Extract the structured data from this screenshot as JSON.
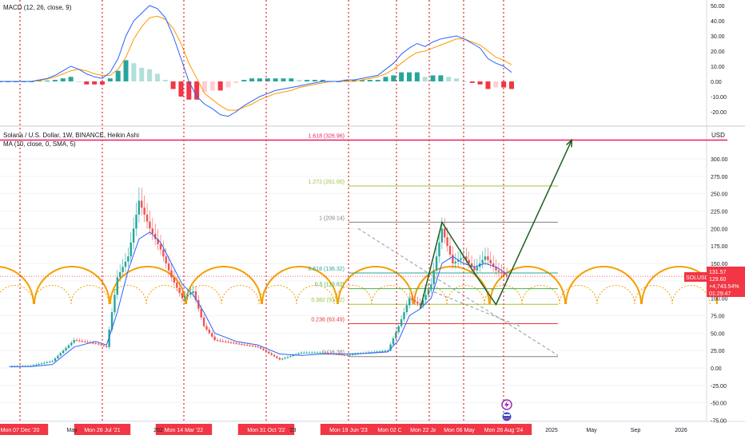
{
  "macd_panel": {
    "title": "MACD (12, 26, close, 9)",
    "y_ticks": [
      "50.00",
      "40.00",
      "30.00",
      "20.00",
      "10.00",
      "0.00",
      "-10.00",
      "-20.00"
    ]
  },
  "main_panel": {
    "title": "Solana / U.S. Dollar, 1W, BINANCE, Heikin Ashi",
    "subtitle": "MA (10, close, 0, SMA, 5)",
    "currency": "USD",
    "y_ticks": [
      "300.00",
      "275.00",
      "250.00",
      "225.00",
      "200.00",
      "175.00",
      "150.00",
      "125.00",
      "100.00",
      "75.00",
      "50.00",
      "25.00",
      "0.00",
      "-25.00",
      "-50.00",
      "-75.00"
    ],
    "price_box": {
      "symbol": "SOLUSD",
      "price": "131.57",
      "value2": "129.60",
      "change": "+4,743.54%",
      "countdown": "01:29:47"
    }
  },
  "x_axis": {
    "red_labels": [
      "Mon 07 Dec '20",
      "Mon 26 Jul '21",
      "Mon 14 Mar '22",
      "Mon 31 Oct '22",
      "Mon 19 Jun '23",
      "Mon 02 Oct '23",
      "Mon 22 Jan '24",
      "Mon 06 May '24",
      "Mon 26 Aug '24"
    ],
    "grey_labels": [
      "May",
      "202",
      "'23",
      "2025",
      "May",
      "Sep",
      "2026"
    ]
  },
  "fib_levels": [
    {
      "label": "1.618 (326.96)",
      "value": 326.96,
      "color": "#e91e63"
    },
    {
      "label": "1.272 (261.00)",
      "value": 261.0,
      "color": "#9bc53d"
    },
    {
      "label": "1 (209.14)",
      "value": 209.14,
      "color": "#808080"
    },
    {
      "label": "0.618 (136.32)",
      "value": 136.32,
      "color": "#26a69a"
    },
    {
      "label": "0.5 (113.82)",
      "value": 113.82,
      "color": "#4caf50"
    },
    {
      "label": "0.382 (91.32)",
      "value": 91.32,
      "color": "#9bc53d"
    },
    {
      "label": "0.236 (63.49)",
      "value": 63.49,
      "color": "#e53935"
    },
    {
      "label": "0 (16.38)",
      "value": 16.38,
      "color": "#808080"
    }
  ],
  "chart_data": [
    {
      "type": "bar",
      "title": "MACD (12, 26, close, 9)",
      "ylim": [
        -25,
        52
      ],
      "series": [
        {
          "name": "MACD",
          "values": [
            0,
            0,
            0,
            0,
            0,
            1,
            2,
            4,
            7,
            10,
            8,
            5,
            3,
            2,
            6,
            15,
            30,
            40,
            45,
            50,
            48,
            42,
            30,
            15,
            0,
            -10,
            -15,
            -18,
            -22,
            -23,
            -20,
            -16,
            -13,
            -10,
            -8,
            -6,
            -5,
            -4,
            -3,
            -2,
            -1,
            0,
            0,
            0,
            1,
            1,
            2,
            3,
            4,
            8,
            12,
            18,
            22,
            25,
            23,
            26,
            28,
            29,
            30,
            28,
            25,
            22,
            15,
            12,
            10,
            6
          ]
        },
        {
          "name": "Signal",
          "values": [
            0,
            0,
            0,
            0,
            0,
            0.5,
            1.5,
            3,
            5,
            7,
            8,
            7,
            5,
            4,
            4,
            8,
            16,
            28,
            36,
            42,
            43,
            41,
            35,
            25,
            12,
            2,
            -8,
            -12,
            -16,
            -19,
            -19,
            -17,
            -15,
            -12,
            -10,
            -8,
            -7,
            -6,
            -4,
            -3,
            -2,
            -1,
            0,
            0,
            0,
            0,
            1,
            2,
            3,
            5,
            8,
            12,
            16,
            19,
            20,
            22,
            24,
            26,
            28,
            28,
            26,
            24,
            20,
            16,
            14,
            11
          ]
        }
      ]
    },
    {
      "type": "line",
      "title": "Solana / U.S. Dollar, 1W, BINANCE, Heikin Ashi",
      "ylabel": "USD",
      "ylim": [
        -80,
        335
      ],
      "x": [
        "2020-11",
        "2021-01",
        "2021-03",
        "2021-05",
        "2021-07",
        "2021-08",
        "2021-09",
        "2021-10",
        "2021-11",
        "2021-12",
        "2022-01",
        "2022-02",
        "2022-03",
        "2022-04",
        "2022-05",
        "2022-06",
        "2022-08",
        "2022-10",
        "2022-12",
        "2023-02",
        "2023-04",
        "2023-06",
        "2023-08",
        "2023-10",
        "2023-11",
        "2023-12",
        "2024-01",
        "2024-02",
        "2024-03",
        "2024-04",
        "2024-05",
        "2024-06",
        "2024-07",
        "2024-08",
        "2024-09"
      ],
      "series": [
        {
          "name": "Price",
          "values": [
            2,
            3,
            10,
            40,
            35,
            30,
            130,
            160,
            240,
            200,
            170,
            130,
            100,
            110,
            60,
            40,
            35,
            30,
            12,
            22,
            22,
            18,
            22,
            25,
            60,
            100,
            90,
            120,
            200,
            150,
            160,
            140,
            160,
            140,
            131.57
          ]
        },
        {
          "name": "MA (10, close, 0, SMA, 5)",
          "values": [
            2,
            2,
            5,
            30,
            38,
            33,
            80,
            140,
            185,
            195,
            180,
            150,
            120,
            105,
            80,
            50,
            38,
            33,
            20,
            18,
            20,
            20,
            21,
            23,
            40,
            75,
            85,
            100,
            150,
            160,
            150,
            145,
            150,
            145,
            135
          ]
        }
      ],
      "projection": [
        {
          "x": "2024-03",
          "y": 209
        },
        {
          "x": "2024-06",
          "y": 136
        },
        {
          "x": "2024-08",
          "y": 91
        },
        {
          "x": "2025-03",
          "y": 327
        }
      ]
    }
  ]
}
